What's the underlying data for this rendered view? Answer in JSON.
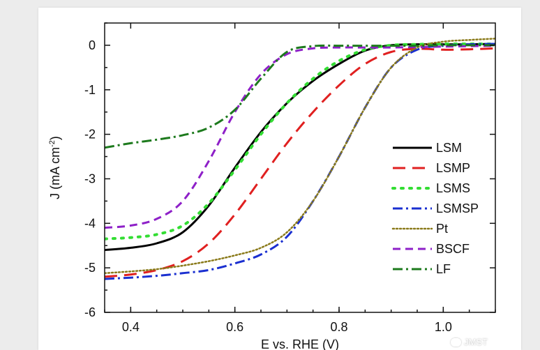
{
  "chart_data": {
    "type": "line",
    "title": "",
    "xlabel": "E vs. RHE (V)",
    "ylabel": "J (mA cm",
    "ylabel_sup": "-2",
    "ylabel_close": ")",
    "xlim": [
      0.35,
      1.1
    ],
    "ylim": [
      -6,
      0.5
    ],
    "xticks": [
      0.4,
      0.6,
      0.8,
      1.0
    ],
    "xtick_labels": [
      "0.4",
      "0.6",
      "0.8",
      "1.0"
    ],
    "yticks": [
      0,
      -1,
      -2,
      -3,
      -4,
      -5,
      -6
    ],
    "ytick_labels": [
      "0",
      "-1",
      "-2",
      "-3",
      "-4",
      "-5",
      "-6"
    ],
    "legend_position": "right",
    "grid": false,
    "series": [
      {
        "name": "LSM",
        "color": "#000000",
        "dash": "solid",
        "x": [
          0.35,
          0.4,
          0.45,
          0.5,
          0.55,
          0.6,
          0.65,
          0.7,
          0.75,
          0.8,
          0.85,
          0.9,
          0.95,
          1.0,
          1.05,
          1.1
        ],
        "y": [
          -4.6,
          -4.55,
          -4.45,
          -4.2,
          -3.6,
          -2.75,
          -1.95,
          -1.3,
          -0.8,
          -0.42,
          -0.12,
          0.0,
          0.02,
          0.02,
          0.02,
          0.03
        ]
      },
      {
        "name": "LSMP",
        "color": "#e02020",
        "dash": "longdash",
        "x": [
          0.35,
          0.4,
          0.45,
          0.5,
          0.55,
          0.6,
          0.65,
          0.7,
          0.75,
          0.8,
          0.85,
          0.9,
          0.95,
          1.0,
          1.05,
          1.1
        ],
        "y": [
          -5.2,
          -5.15,
          -5.05,
          -4.85,
          -4.45,
          -3.8,
          -3.0,
          -2.2,
          -1.5,
          -0.9,
          -0.42,
          -0.15,
          -0.08,
          -0.1,
          -0.09,
          -0.07
        ]
      },
      {
        "name": "LSMS",
        "color": "#33dd33",
        "dash": "dot",
        "x": [
          0.35,
          0.4,
          0.45,
          0.5,
          0.55,
          0.6,
          0.65,
          0.7,
          0.75,
          0.8,
          0.85,
          0.9,
          0.95,
          1.0,
          1.05,
          1.1
        ],
        "y": [
          -4.35,
          -4.32,
          -4.25,
          -4.05,
          -3.55,
          -2.8,
          -2.0,
          -1.3,
          -0.75,
          -0.35,
          -0.1,
          0.0,
          0.02,
          0.03,
          0.03,
          0.03
        ]
      },
      {
        "name": "LSMSP",
        "color": "#1a2fd0",
        "dash": "dashdot",
        "x": [
          0.35,
          0.4,
          0.45,
          0.5,
          0.55,
          0.6,
          0.65,
          0.7,
          0.75,
          0.8,
          0.85,
          0.9,
          0.95,
          1.0,
          1.05,
          1.1
        ],
        "y": [
          -5.25,
          -5.22,
          -5.18,
          -5.12,
          -5.05,
          -4.9,
          -4.7,
          -4.3,
          -3.5,
          -2.5,
          -1.4,
          -0.5,
          -0.1,
          -0.01,
          0.02,
          0.03
        ]
      },
      {
        "name": "Pt",
        "color": "#8a7a1a",
        "dash": "finedot",
        "x": [
          0.35,
          0.4,
          0.45,
          0.5,
          0.55,
          0.6,
          0.65,
          0.7,
          0.75,
          0.8,
          0.85,
          0.9,
          0.95,
          1.0,
          1.05,
          1.1
        ],
        "y": [
          -5.12,
          -5.08,
          -5.03,
          -4.95,
          -4.85,
          -4.72,
          -4.55,
          -4.2,
          -3.5,
          -2.5,
          -1.4,
          -0.5,
          -0.05,
          0.08,
          0.12,
          0.15
        ]
      },
      {
        "name": "BSCF",
        "color": "#8e20c8",
        "dash": "dash",
        "x": [
          0.35,
          0.4,
          0.45,
          0.5,
          0.55,
          0.6,
          0.65,
          0.7,
          0.75,
          0.8,
          0.85,
          0.9,
          0.95,
          1.0,
          1.05,
          1.1
        ],
        "y": [
          -4.1,
          -4.05,
          -3.9,
          -3.5,
          -2.6,
          -1.5,
          -0.65,
          -0.2,
          -0.07,
          -0.05,
          -0.05,
          -0.05,
          -0.04,
          -0.03,
          -0.02,
          -0.01
        ]
      },
      {
        "name": "LF",
        "color": "#1d7a1d",
        "dash": "dashdot",
        "x": [
          0.35,
          0.4,
          0.45,
          0.5,
          0.55,
          0.6,
          0.65,
          0.7,
          0.75,
          0.8,
          0.85,
          0.9,
          0.95,
          1.0,
          1.05,
          1.1
        ],
        "y": [
          -2.3,
          -2.2,
          -2.12,
          -2.02,
          -1.85,
          -1.45,
          -0.75,
          -0.15,
          -0.02,
          -0.01,
          -0.01,
          -0.01,
          -0.01,
          0.0,
          0.0,
          0.0
        ]
      }
    ]
  },
  "watermark": {
    "text": "JMST",
    "icon": "chat-bubble-icon"
  }
}
